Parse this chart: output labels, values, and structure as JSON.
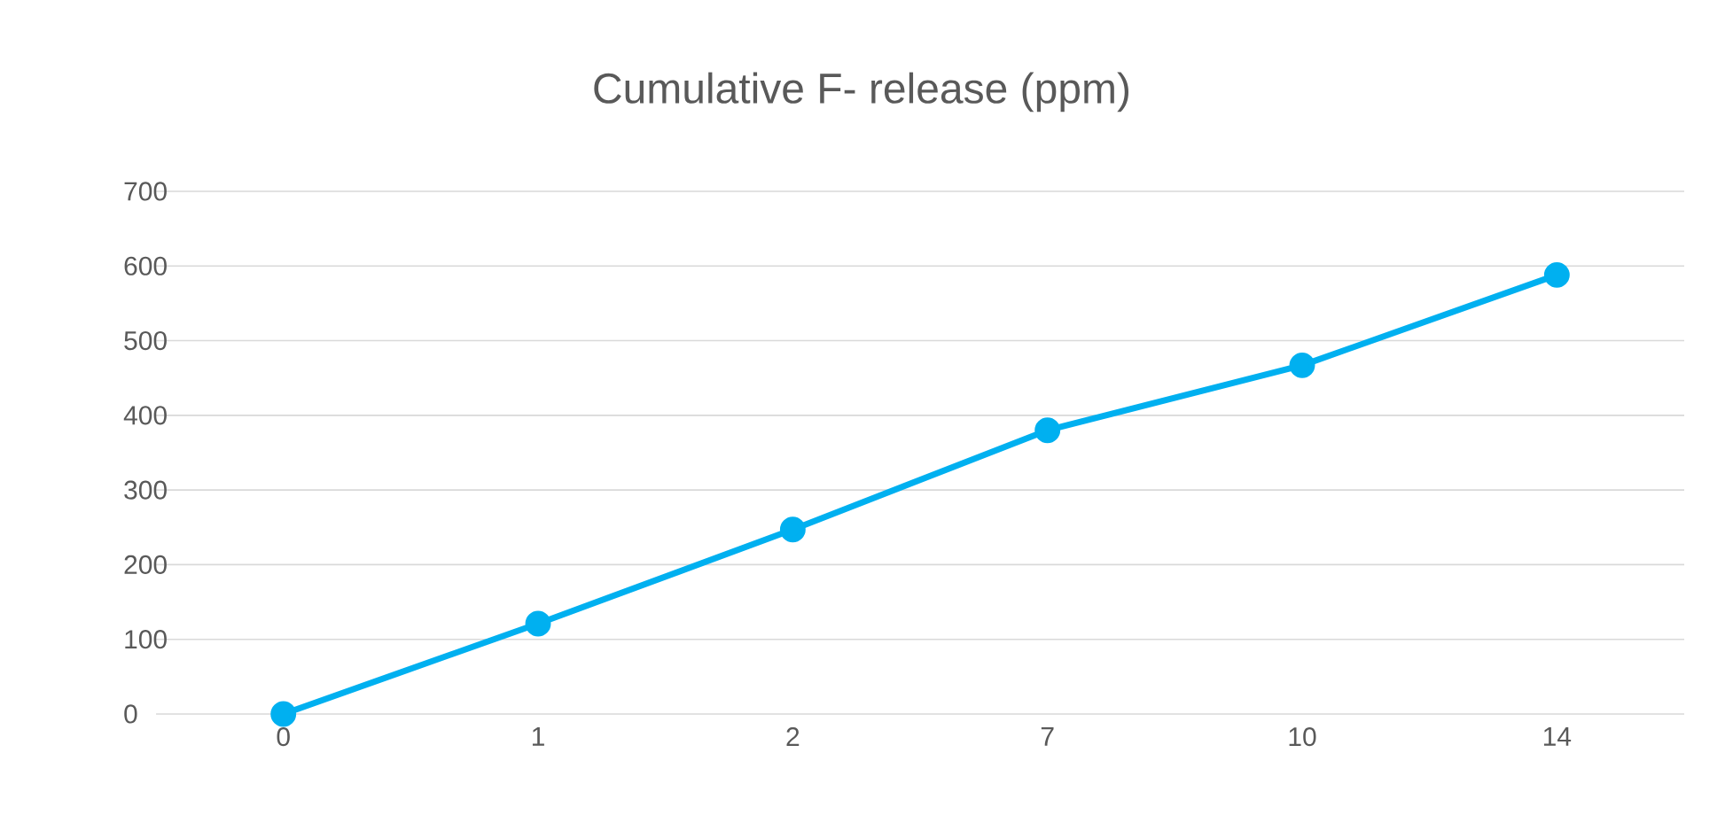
{
  "chart_data": {
    "type": "line",
    "title": "Cumulative F- release (ppm)",
    "categories": [
      "0",
      "1",
      "2",
      "7",
      "10",
      "14"
    ],
    "values": [
      0,
      121,
      247,
      380,
      467,
      588
    ],
    "color": "#00b0f0",
    "ylim": [
      0,
      700
    ],
    "yticks": [
      0,
      100,
      200,
      300,
      400,
      500,
      600,
      700
    ],
    "grid": "y",
    "marker": "circle",
    "line_style": "solid"
  }
}
